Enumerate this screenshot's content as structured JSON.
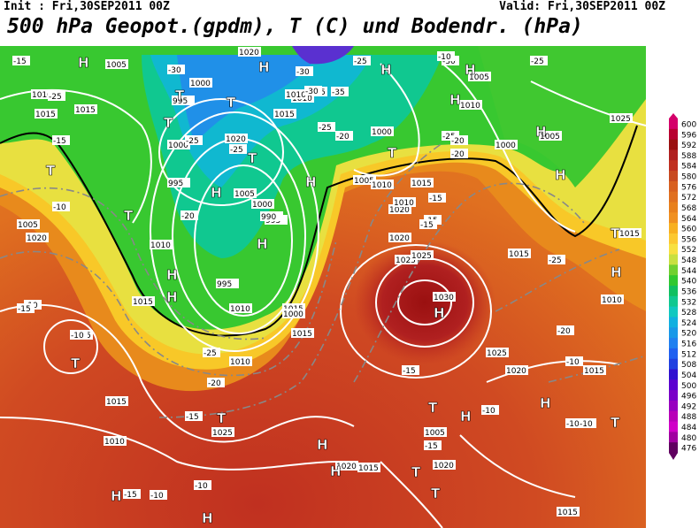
{
  "header": {
    "init": "Init : Fri,30SEP2011 00Z",
    "valid": "Valid: Fri,30SEP2011 00Z",
    "title": "500 hPa Geopot.(gpdm), T (C) und Bodendr. (hPa)"
  },
  "colorbar": {
    "levels": [
      "600",
      "596",
      "592",
      "588",
      "584",
      "580",
      "576",
      "572",
      "568",
      "564",
      "560",
      "556",
      "552",
      "548",
      "544",
      "540",
      "536",
      "532",
      "528",
      "524",
      "520",
      "516",
      "512",
      "508",
      "504",
      "500",
      "496",
      "492",
      "488",
      "484",
      "480",
      "476"
    ],
    "colors": [
      "#d4006a",
      "#b80030",
      "#9a1010",
      "#b02020",
      "#c03020",
      "#c84a20",
      "#d86020",
      "#e07020",
      "#e8801c",
      "#f09020",
      "#f8b020",
      "#fcc830",
      "#f8e040",
      "#c8e040",
      "#70d030",
      "#30c830",
      "#10c060",
      "#10c890",
      "#10c8c0",
      "#10b0e0",
      "#1898e8",
      "#2080f0",
      "#2060f0",
      "#2040e0",
      "#3010d0",
      "#5a00d0",
      "#7a00c8",
      "#9800c0",
      "#b800b8",
      "#d000c8",
      "#a000a0",
      "#600060"
    ]
  },
  "pressure_labels": [
    "1005",
    "1000",
    "995",
    "1005",
    "1000",
    "1000",
    "995",
    "1020",
    "1015",
    "1010",
    "1005",
    "1000",
    "995",
    "1010",
    "1015",
    "1020",
    "1025",
    "1030",
    "1025",
    "1020",
    "1015",
    "1010",
    "1005",
    "1010",
    "1015",
    "1020",
    "1025",
    "1010",
    "1005",
    "1020",
    "1015",
    "1010",
    "1015",
    "1020",
    "1025",
    "1015",
    "1000",
    "1005",
    "1010",
    "1015",
    "1010",
    "1015",
    "1020",
    "1025",
    "1015",
    "1010",
    "1015",
    "1020",
    "1025",
    "1010",
    "1015",
    "1005",
    "990",
    "1000",
    "995",
    "1015",
    "1005",
    "1010"
  ],
  "temp_labels": [
    "-30",
    "-25",
    "-15",
    "-35",
    "-30",
    "-25",
    "-25",
    "-30",
    "-25",
    "-20",
    "-15",
    "-10",
    "-10",
    "-25",
    "-20",
    "-15",
    "-10",
    "-15",
    "-25",
    "-20",
    "-15",
    "-10",
    "-10",
    "-10",
    "-10",
    "-20",
    "-15",
    "-15",
    "-10",
    "-30",
    "-25",
    "-25",
    "-20",
    "-15",
    "-25",
    "-20",
    "-15",
    "-10",
    "-15",
    "-10",
    "-10"
  ],
  "centers": [
    "H",
    "T",
    "H",
    "T",
    "T",
    "H",
    "H",
    "H",
    "T",
    "H",
    "T",
    "H",
    "T",
    "H",
    "H",
    "T",
    "H",
    "H",
    "T",
    "H",
    "H",
    "T",
    "H",
    "T",
    "H",
    "H",
    "T",
    "H",
    "H",
    "T",
    "H",
    "T",
    "H",
    "T"
  ]
}
